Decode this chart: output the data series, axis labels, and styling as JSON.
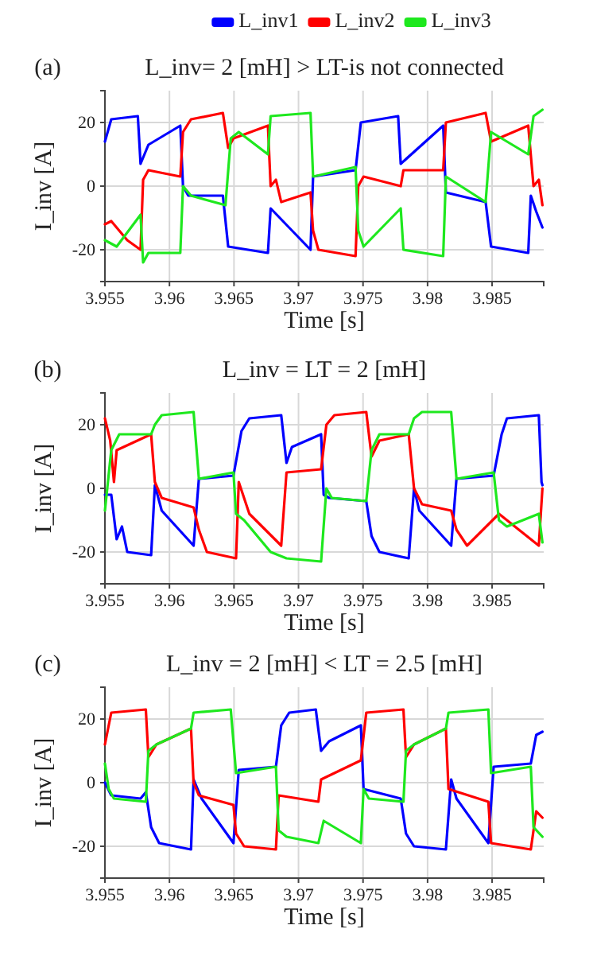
{
  "chart_data": [
    {
      "type": "line",
      "title": "L_inv= 2 [mH] > LT-is not connected",
      "annotations": [
        "(a)"
      ],
      "xlabel": "Time [s]",
      "ylabel": "I_inv [A]",
      "xlim": [
        3.955,
        3.989
      ],
      "xticks": [
        3.955,
        3.96,
        3.965,
        3.97,
        3.975,
        3.98,
        3.985
      ],
      "ylim": [
        -30,
        30
      ],
      "yticks": [
        -20,
        0,
        20
      ],
      "grid": true,
      "legend": "top",
      "series": [
        {
          "name": "L_inv1",
          "color": "#0000ff",
          "x": [
            3.955,
            3.95549,
            3.95755,
            3.95776,
            3.95837,
            3.96084,
            3.96105,
            3.96146,
            3.96414,
            3.96455,
            3.96763,
            3.96784,
            3.97093,
            3.97113,
            3.97442,
            3.97483,
            3.97772,
            3.97792,
            3.98121,
            3.98142,
            3.9845,
            3.98492,
            3.9878,
            3.988,
            3.98842,
            3.9889
          ],
          "values": [
            14,
            21,
            22,
            7,
            13,
            19,
            0,
            -3,
            -3,
            -19,
            -21,
            -7,
            -20,
            3,
            5,
            20,
            22,
            7,
            19,
            -2,
            -5,
            -19,
            -21,
            -3,
            -8,
            -13
          ]
        },
        {
          "name": "L_inv2",
          "color": "#ff0000",
          "x": [
            3.955,
            3.95549,
            3.95673,
            3.95776,
            3.95796,
            3.95837,
            3.96084,
            3.96105,
            3.96167,
            3.96414,
            3.96455,
            3.96496,
            3.96763,
            3.96784,
            3.96825,
            3.96866,
            3.97093,
            3.97113,
            3.97154,
            3.97442,
            3.97463,
            3.97504,
            3.97792,
            3.97813,
            3.98121,
            3.98142,
            3.9845,
            3.98492,
            3.9878,
            3.98821,
            3.98862,
            3.9889
          ],
          "values": [
            -12,
            -11,
            -17,
            -20,
            2,
            5,
            3,
            17,
            21,
            23,
            12,
            15,
            19,
            0,
            2,
            -5,
            -2,
            -14,
            -20,
            -22,
            0,
            3,
            0,
            5,
            5,
            20,
            23,
            14,
            19,
            0,
            2,
            -6
          ]
        },
        {
          "name": "L_inv3",
          "color": "#1ee81e",
          "x": [
            3.955,
            3.95591,
            3.95776,
            3.95796,
            3.95837,
            3.96084,
            3.96105,
            3.96167,
            3.96434,
            3.96475,
            3.96537,
            3.96763,
            3.96784,
            3.97093,
            3.97113,
            3.97442,
            3.97463,
            3.97504,
            3.97792,
            3.97813,
            3.98121,
            3.98142,
            3.9845,
            3.98492,
            3.9878,
            3.98821,
            3.9889
          ],
          "values": [
            -17,
            -19,
            -9,
            -24,
            -21,
            -21,
            0,
            -3,
            -6,
            15,
            17,
            10,
            22,
            23,
            3,
            6,
            -14,
            -19,
            -7,
            -20,
            -22,
            3,
            -5,
            17,
            10,
            22,
            24
          ]
        }
      ]
    },
    {
      "type": "line",
      "title": "L_inv = LT = 2 [mH]",
      "annotations": [
        "(b)"
      ],
      "xlabel": "Time [s]",
      "ylabel": "I_inv [A]",
      "xlim": [
        3.955,
        3.989
      ],
      "xticks": [
        3.955,
        3.96,
        3.965,
        3.97,
        3.975,
        3.98,
        3.985
      ],
      "ylim": [
        -30,
        30
      ],
      "yticks": [
        -20,
        0,
        20
      ],
      "grid": true,
      "series": [
        {
          "color": "#0000ff",
          "x": [
            3.955,
            3.95549,
            3.95591,
            3.95632,
            3.95673,
            3.95858,
            3.95887,
            3.9594,
            3.96187,
            3.96228,
            3.96496,
            3.96558,
            3.96619,
            3.96866,
            3.96907,
            3.96949,
            3.97175,
            3.97195,
            3.97237,
            3.97525,
            3.97566,
            3.97627,
            3.97854,
            3.97895,
            3.97936,
            3.98183,
            3.98224,
            3.98512,
            3.98574,
            3.98615,
            3.98862,
            3.98883,
            3.9889
          ],
          "values": [
            -2,
            -2,
            -16,
            -12,
            -20,
            -21,
            1,
            -7,
            -18,
            3,
            4,
            18,
            22,
            23,
            8,
            13,
            17,
            -2,
            -3,
            -4,
            -15,
            -20,
            -22,
            0,
            -7,
            -18,
            3,
            4,
            17,
            22,
            23,
            2,
            1
          ]
        },
        {
          "color": "#ff0000",
          "x": [
            3.955,
            3.95541,
            3.9557,
            3.95591,
            3.95858,
            3.95887,
            3.9594,
            3.96187,
            3.96228,
            3.9629,
            3.96516,
            3.96537,
            3.96619,
            3.96866,
            3.96907,
            3.97175,
            3.97216,
            3.97278,
            3.97525,
            3.97566,
            3.97627,
            3.97854,
            3.97895,
            3.97957,
            3.98183,
            3.98224,
            3.98306,
            3.98553,
            3.98862,
            3.9889
          ],
          "values": [
            22,
            15,
            2,
            12,
            17,
            2,
            -3,
            -6,
            -13,
            -20,
            -22,
            2,
            -8,
            -18,
            5,
            6,
            20,
            23,
            24,
            10,
            15,
            17,
            0,
            -5,
            -7,
            -13,
            -18,
            -8,
            -18,
            0
          ]
        },
        {
          "color": "#1ee81e",
          "x": [
            3.955,
            3.95549,
            3.95611,
            3.95858,
            3.95887,
            3.9594,
            3.96187,
            3.96228,
            3.96496,
            3.96516,
            3.96578,
            3.96784,
            3.96907,
            3.97175,
            3.97216,
            3.97257,
            3.97525,
            3.97566,
            3.97627,
            3.97854,
            3.97895,
            3.97957,
            3.98183,
            3.98224,
            3.98512,
            3.98553,
            3.98615,
            3.98862,
            3.9889
          ],
          "values": [
            -7,
            12,
            17,
            17,
            20,
            23,
            24,
            3,
            5,
            -8,
            -10,
            -20,
            -22,
            -23,
            0,
            -3,
            -4,
            12,
            17,
            17,
            22,
            24,
            24,
            3,
            5,
            -10,
            -12,
            -8,
            -17
          ]
        }
      ]
    },
    {
      "type": "line",
      "title": "L_inv = 2 [mH] < LT = 2.5 [mH]",
      "annotations": [
        "(c)"
      ],
      "xlabel": "Time [s]",
      "ylabel": "I_inv [A]",
      "xlim": [
        3.955,
        3.989
      ],
      "xticks": [
        3.955,
        3.96,
        3.965,
        3.97,
        3.975,
        3.98,
        3.985
      ],
      "ylim": [
        -30,
        30
      ],
      "yticks": [
        -20,
        0,
        20
      ],
      "grid": true,
      "series": [
        {
          "color": "#0000ff",
          "x": [
            3.955,
            3.95549,
            3.95776,
            3.95817,
            3.95858,
            3.9592,
            3.96167,
            3.96187,
            3.96249,
            3.96496,
            3.96537,
            3.96825,
            3.96866,
            3.96928,
            3.97134,
            3.97175,
            3.97237,
            3.97483,
            3.97504,
            3.97792,
            3.97833,
            3.97895,
            3.98142,
            3.98183,
            3.98224,
            3.98471,
            3.98512,
            3.988,
            3.98842,
            3.9889
          ],
          "values": [
            0,
            -4,
            -5,
            -3,
            -14,
            -19,
            -21,
            1,
            -5,
            -19,
            4,
            5,
            18,
            22,
            23,
            10,
            13,
            18,
            -2,
            -5,
            -16,
            -20,
            -21,
            1,
            -5,
            -19,
            5,
            6,
            15,
            16
          ]
        },
        {
          "color": "#ff0000",
          "x": [
            3.955,
            3.95549,
            3.95817,
            3.95837,
            3.95899,
            3.96167,
            3.96187,
            3.96228,
            3.96496,
            3.96516,
            3.96578,
            3.96825,
            3.96846,
            3.97154,
            3.97175,
            3.97483,
            3.97525,
            3.97813,
            3.97833,
            3.97895,
            3.98142,
            3.98162,
            3.98471,
            3.98492,
            3.988,
            3.98842,
            3.9889
          ],
          "values": [
            12,
            22,
            23,
            8,
            12,
            17,
            0,
            -4,
            -7,
            -16,
            -20,
            -21,
            -4,
            -6,
            1,
            7,
            22,
            23,
            8,
            12,
            17,
            -2,
            -6,
            -19,
            -21,
            -9,
            -11
          ]
        },
        {
          "color": "#1ee81e",
          "x": [
            3.955,
            3.95529,
            3.9557,
            3.95817,
            3.95837,
            3.95899,
            3.96167,
            3.96187,
            3.96475,
            3.96516,
            3.96825,
            3.96846,
            3.96907,
            3.97154,
            3.97195,
            3.97483,
            3.97504,
            3.97545,
            3.97813,
            3.97833,
            3.97895,
            3.98142,
            3.98162,
            3.98471,
            3.98492,
            3.988,
            3.98821,
            3.9889
          ],
          "values": [
            6,
            -2,
            -5,
            -6,
            10,
            12,
            17,
            22,
            23,
            3,
            5,
            -15,
            -17,
            -19,
            -12,
            -19,
            -2,
            -5,
            -6,
            10,
            12,
            17,
            22,
            23,
            3,
            5,
            -14,
            -17
          ]
        }
      ]
    }
  ]
}
